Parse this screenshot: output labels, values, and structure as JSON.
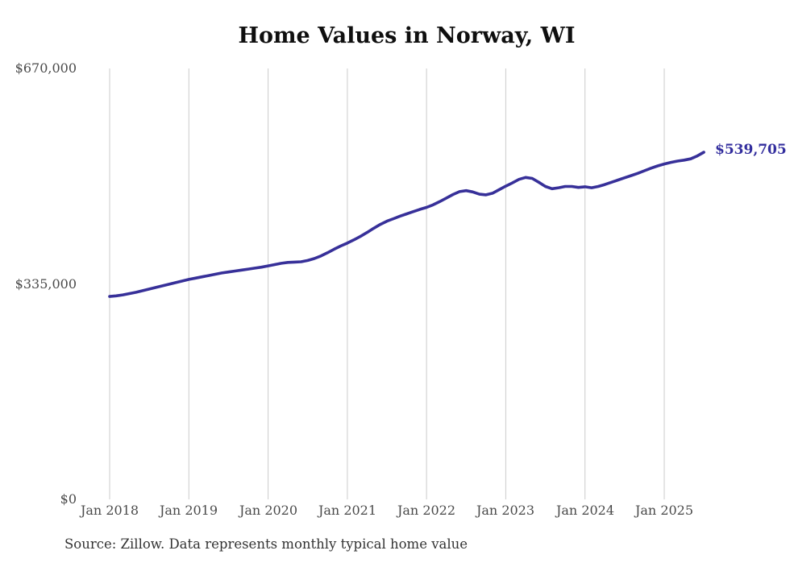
{
  "chart_data": {
    "type": "line",
    "title": "Home Values in Norway, WI",
    "source_note": "Source: Zillow. Data represents monthly typical home value",
    "end_label": "$539,705",
    "end_value": 539705,
    "xlabel": "",
    "ylabel": "",
    "ylim": [
      0,
      670000
    ],
    "grid": "vertical-only",
    "legend": "none",
    "y_ticks": [
      {
        "label": "$670,000",
        "value": 670000
      },
      {
        "label": "$335,000",
        "value": 335000
      },
      {
        "label": "$0",
        "value": 0
      }
    ],
    "x_ticks": [
      {
        "label": "Jan 2018",
        "month_index": 0
      },
      {
        "label": "Jan 2019",
        "month_index": 12
      },
      {
        "label": "Jan 2020",
        "month_index": 24
      },
      {
        "label": "Jan 2021",
        "month_index": 36
      },
      {
        "label": "Jan 2022",
        "month_index": 48
      },
      {
        "label": "Jan 2023",
        "month_index": 60
      },
      {
        "label": "Jan 2024",
        "month_index": 72
      },
      {
        "label": "Jan 2025",
        "month_index": 84
      }
    ],
    "x": [
      "2018-01",
      "2018-02",
      "2018-03",
      "2018-04",
      "2018-05",
      "2018-06",
      "2018-07",
      "2018-08",
      "2018-09",
      "2018-10",
      "2018-11",
      "2018-12",
      "2019-01",
      "2019-02",
      "2019-03",
      "2019-04",
      "2019-05",
      "2019-06",
      "2019-07",
      "2019-08",
      "2019-09",
      "2019-10",
      "2019-11",
      "2019-12",
      "2020-01",
      "2020-02",
      "2020-03",
      "2020-04",
      "2020-05",
      "2020-06",
      "2020-07",
      "2020-08",
      "2020-09",
      "2020-10",
      "2020-11",
      "2020-12",
      "2021-01",
      "2021-02",
      "2021-03",
      "2021-04",
      "2021-05",
      "2021-06",
      "2021-07",
      "2021-08",
      "2021-09",
      "2021-10",
      "2021-11",
      "2021-12",
      "2022-01",
      "2022-02",
      "2022-03",
      "2022-04",
      "2022-05",
      "2022-06",
      "2022-07",
      "2022-08",
      "2022-09",
      "2022-10",
      "2022-11",
      "2022-12",
      "2023-01",
      "2023-02",
      "2023-03",
      "2023-04",
      "2023-05",
      "2023-06",
      "2023-07",
      "2023-08",
      "2023-09",
      "2023-10",
      "2023-11",
      "2023-12",
      "2024-01",
      "2024-02",
      "2024-03",
      "2024-04",
      "2024-05",
      "2024-06",
      "2024-07",
      "2024-08",
      "2024-09",
      "2024-10",
      "2024-11",
      "2024-12",
      "2025-01",
      "2025-02",
      "2025-03",
      "2025-04",
      "2025-05",
      "2025-06",
      "2025-07"
    ],
    "series": [
      {
        "name": "Typical home value",
        "values": [
          315500,
          316500,
          318000,
          320000,
          322000,
          324500,
          327000,
          329500,
          332000,
          334500,
          337000,
          339500,
          342000,
          344000,
          346000,
          348000,
          350000,
          352000,
          353500,
          355000,
          356500,
          358000,
          359500,
          361000,
          363000,
          365000,
          367000,
          368500,
          369000,
          369500,
          371500,
          374500,
          378500,
          383500,
          389000,
          394000,
          398500,
          403500,
          409000,
          415000,
          421500,
          427500,
          432500,
          436500,
          440500,
          444000,
          447500,
          451000,
          454000,
          458000,
          463000,
          468500,
          474000,
          478500,
          480000,
          478000,
          474500,
          473500,
          476000,
          481500,
          487000,
          492000,
          497500,
          500500,
          499000,
          493000,
          486500,
          483000,
          484500,
          486500,
          486500,
          485000,
          486000,
          484500,
          486500,
          489500,
          493000,
          496500,
          500000,
          503500,
          507000,
          511000,
          515000,
          518500,
          521500,
          524000,
          526000,
          527500,
          529500,
          534000,
          539705
        ]
      }
    ],
    "colors": {
      "line": "#373099",
      "end_label": "#332e9e",
      "grid": "#cbcbcb",
      "axis_text": "#4a4a4a",
      "title": "#0f0f0f",
      "source": "#333333",
      "background": "#ffffff"
    }
  }
}
